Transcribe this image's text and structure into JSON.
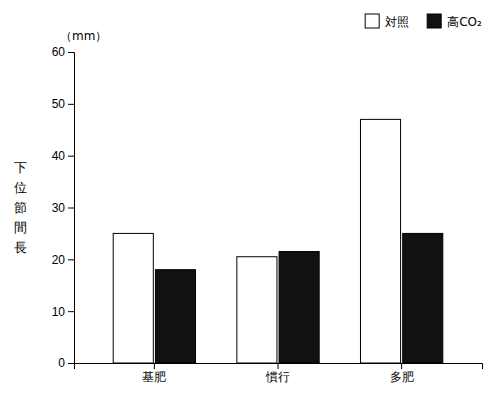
{
  "chart_data": {
    "type": "bar",
    "categories": [
      "基肥",
      "慣行",
      "多肥"
    ],
    "series": [
      {
        "name": "対照",
        "color": "#ffffff",
        "values": [
          25,
          20.5,
          47
        ]
      },
      {
        "name": "高CO₂",
        "color": "#111111",
        "values": [
          18,
          21.5,
          25
        ]
      }
    ],
    "y_label": "下位節間長",
    "annotations": [
      "（mm）"
    ],
    "ylim": [
      0,
      60
    ],
    "yticks": [
      0,
      10,
      20,
      30,
      40,
      50,
      60
    ],
    "legend": "upper right",
    "grid": false
  }
}
